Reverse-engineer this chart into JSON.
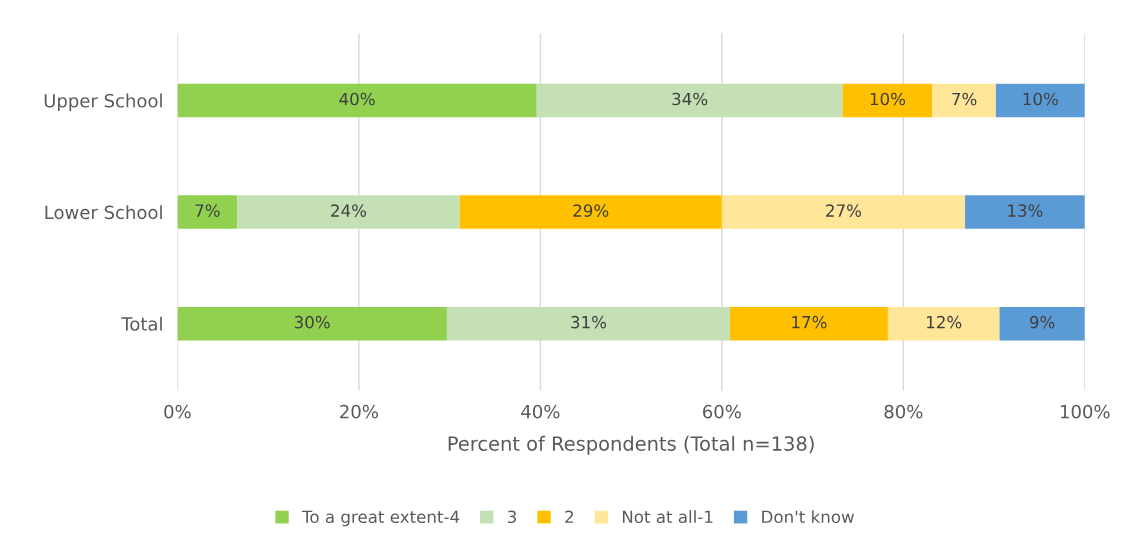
{
  "chart_data": {
    "type": "bar",
    "orientation": "horizontal",
    "stacked": true,
    "xlabel": "Percent of Respondents (Total n=138)",
    "categories": [
      "Upper School",
      "Lower School",
      "Total"
    ],
    "series": [
      {
        "name": "To a great extent-4",
        "color": "#92d050",
        "values": [
          39.6,
          6.6,
          29.7
        ],
        "value_labels": [
          "40%",
          "7%",
          "30%"
        ]
      },
      {
        "name": "3",
        "color": "#c5e0b4",
        "values": [
          33.7,
          24.5,
          31.2
        ],
        "value_labels": [
          "34%",
          "24%",
          "31%"
        ]
      },
      {
        "name": "2",
        "color": "#ffc000",
        "values": [
          9.9,
          28.9,
          17.4
        ],
        "value_labels": [
          "10%",
          "29%",
          "17%"
        ]
      },
      {
        "name": "Not at all-1",
        "color": "#ffe699",
        "values": [
          7.0,
          26.8,
          12.3
        ],
        "value_labels": [
          "7%",
          "27%",
          "12%"
        ]
      },
      {
        "name": "Don't know",
        "color": "#5b9bd5",
        "values": [
          9.8,
          13.2,
          9.4
        ],
        "value_labels": [
          "10%",
          "13%",
          "9%"
        ]
      }
    ],
    "xlim": [
      0,
      100
    ],
    "xticks": [
      {
        "value": 0,
        "label": "0%"
      },
      {
        "value": 20,
        "label": "20%"
      },
      {
        "value": 40,
        "label": "40%"
      },
      {
        "value": 60,
        "label": "60%"
      },
      {
        "value": 80,
        "label": "80%"
      },
      {
        "value": 100,
        "label": "100%"
      }
    ],
    "grid": "x",
    "legend": "bottom"
  }
}
